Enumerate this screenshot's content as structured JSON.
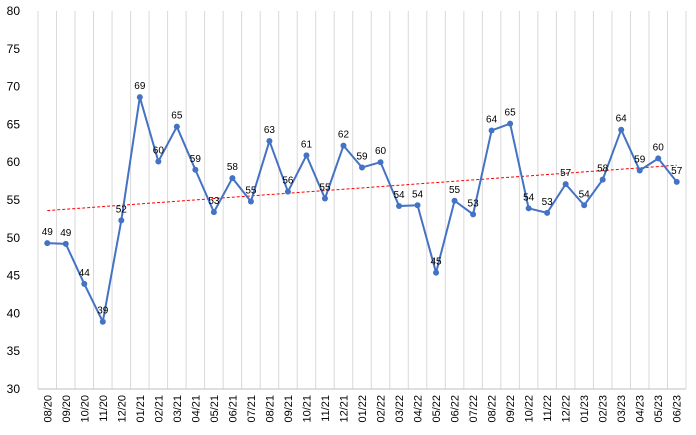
{
  "chart_data": {
    "type": "line",
    "title": "",
    "xlabel": "",
    "ylabel": "",
    "ylim": [
      30,
      80
    ],
    "yticks": [
      30,
      35,
      40,
      45,
      50,
      55,
      60,
      65,
      70,
      75,
      80
    ],
    "grid": "vertical",
    "legend": "none",
    "categories": [
      "08/20",
      "09/20",
      "10/20",
      "11/20",
      "12/20",
      "01/21",
      "02/21",
      "03/21",
      "04/21",
      "05/21",
      "06/21",
      "07/21",
      "08/21",
      "09/21",
      "10/21",
      "11/21",
      "12/21",
      "01/22",
      "02/22",
      "03/22",
      "04/22",
      "05/22",
      "06/22",
      "07/22",
      "08/22",
      "09/22",
      "10/22",
      "11/22",
      "12/22",
      "01/23",
      "02/23",
      "03/23",
      "04/23",
      "05/23",
      "06/23"
    ],
    "series": [
      {
        "values": [
          49.3,
          49.2,
          43.9,
          38.9,
          52.3,
          68.6,
          60.1,
          64.7,
          59.0,
          53.4,
          57.9,
          54.8,
          62.8,
          56.1,
          60.9,
          55.2,
          62.2,
          59.3,
          60.0,
          54.2,
          54.3,
          45.4,
          54.9,
          53.1,
          64.2,
          65.1,
          53.9,
          53.3,
          57.1,
          54.3,
          57.7,
          64.3,
          58.9,
          60.5,
          57.4
        ],
        "labels": [
          "49",
          "49",
          "44",
          "39",
          "52",
          "69",
          "60",
          "65",
          "59",
          "53",
          "58",
          "55",
          "63",
          "56",
          "61",
          "55",
          "62",
          "59",
          "60",
          "54",
          "54",
          "45",
          "55",
          "53",
          "64",
          "65",
          "54",
          "53",
          "57",
          "54",
          "58",
          "64",
          "59",
          "60",
          "57"
        ],
        "color": "#4472c4"
      }
    ],
    "trendline": {
      "start": 53.6,
      "end": 59.6,
      "color": "#ff0000",
      "style": "dashed"
    }
  }
}
